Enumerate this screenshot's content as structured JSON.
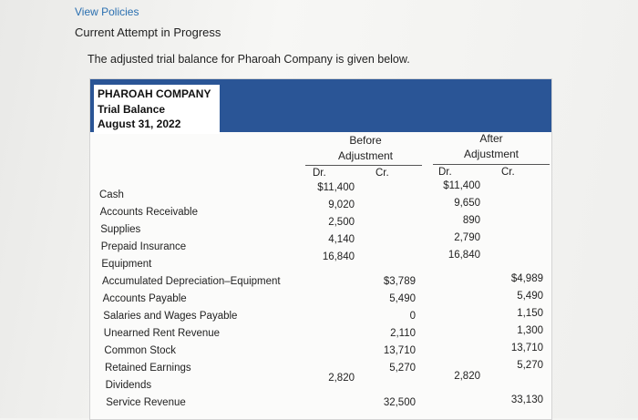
{
  "header": {
    "link": "View Policies",
    "attempt": "Current Attempt in Progress"
  },
  "intro": "The adjusted trial balance for Pharoah Company is given below.",
  "statement": {
    "company": "PHAROAH COMPANY",
    "title": "Trial Balance",
    "date": "August 31, 2022"
  },
  "columns": {
    "before": {
      "line1": "Before",
      "line2": "Adjustment",
      "dr": "Dr.",
      "cr": "Cr."
    },
    "after": {
      "line1": "After",
      "line2": "Adjustment",
      "dr": "Dr.",
      "cr": "Cr."
    }
  },
  "rows": [
    {
      "account": "Cash",
      "before_dr": "$11,400",
      "before_cr": "",
      "after_dr": "$11,400",
      "after_cr": ""
    },
    {
      "account": "Accounts Receivable",
      "before_dr": "9,020",
      "before_cr": "",
      "after_dr": "9,650",
      "after_cr": ""
    },
    {
      "account": "Supplies",
      "before_dr": "2,500",
      "before_cr": "",
      "after_dr": "890",
      "after_cr": ""
    },
    {
      "account": "Prepaid Insurance",
      "before_dr": "4,140",
      "before_cr": "",
      "after_dr": "2,790",
      "after_cr": ""
    },
    {
      "account": "Equipment",
      "before_dr": "16,840",
      "before_cr": "",
      "after_dr": "16,840",
      "after_cr": ""
    },
    {
      "account": "Accumulated Depreciation–Equipment",
      "before_dr": "",
      "before_cr": "$3,789",
      "after_dr": "",
      "after_cr": "$4,989"
    },
    {
      "account": "Accounts Payable",
      "before_dr": "",
      "before_cr": "5,490",
      "after_dr": "",
      "after_cr": "5,490"
    },
    {
      "account": "Salaries and Wages Payable",
      "before_dr": "",
      "before_cr": "0",
      "after_dr": "",
      "after_cr": "1,150"
    },
    {
      "account": "Unearned Rent Revenue",
      "before_dr": "",
      "before_cr": "2,110",
      "after_dr": "",
      "after_cr": "1,300"
    },
    {
      "account": "Common Stock",
      "before_dr": "",
      "before_cr": "13,710",
      "after_dr": "",
      "after_cr": "13,710"
    },
    {
      "account": "Retained Earnings",
      "before_dr": "",
      "before_cr": "5,270",
      "after_dr": "",
      "after_cr": "5,270"
    },
    {
      "account": "Dividends",
      "before_dr": "2,820",
      "before_cr": "",
      "after_dr": "2,820",
      "after_cr": ""
    },
    {
      "account": "Service Revenue",
      "before_dr": "",
      "before_cr": "32,500",
      "after_dr": "",
      "after_cr": "33,130"
    }
  ]
}
